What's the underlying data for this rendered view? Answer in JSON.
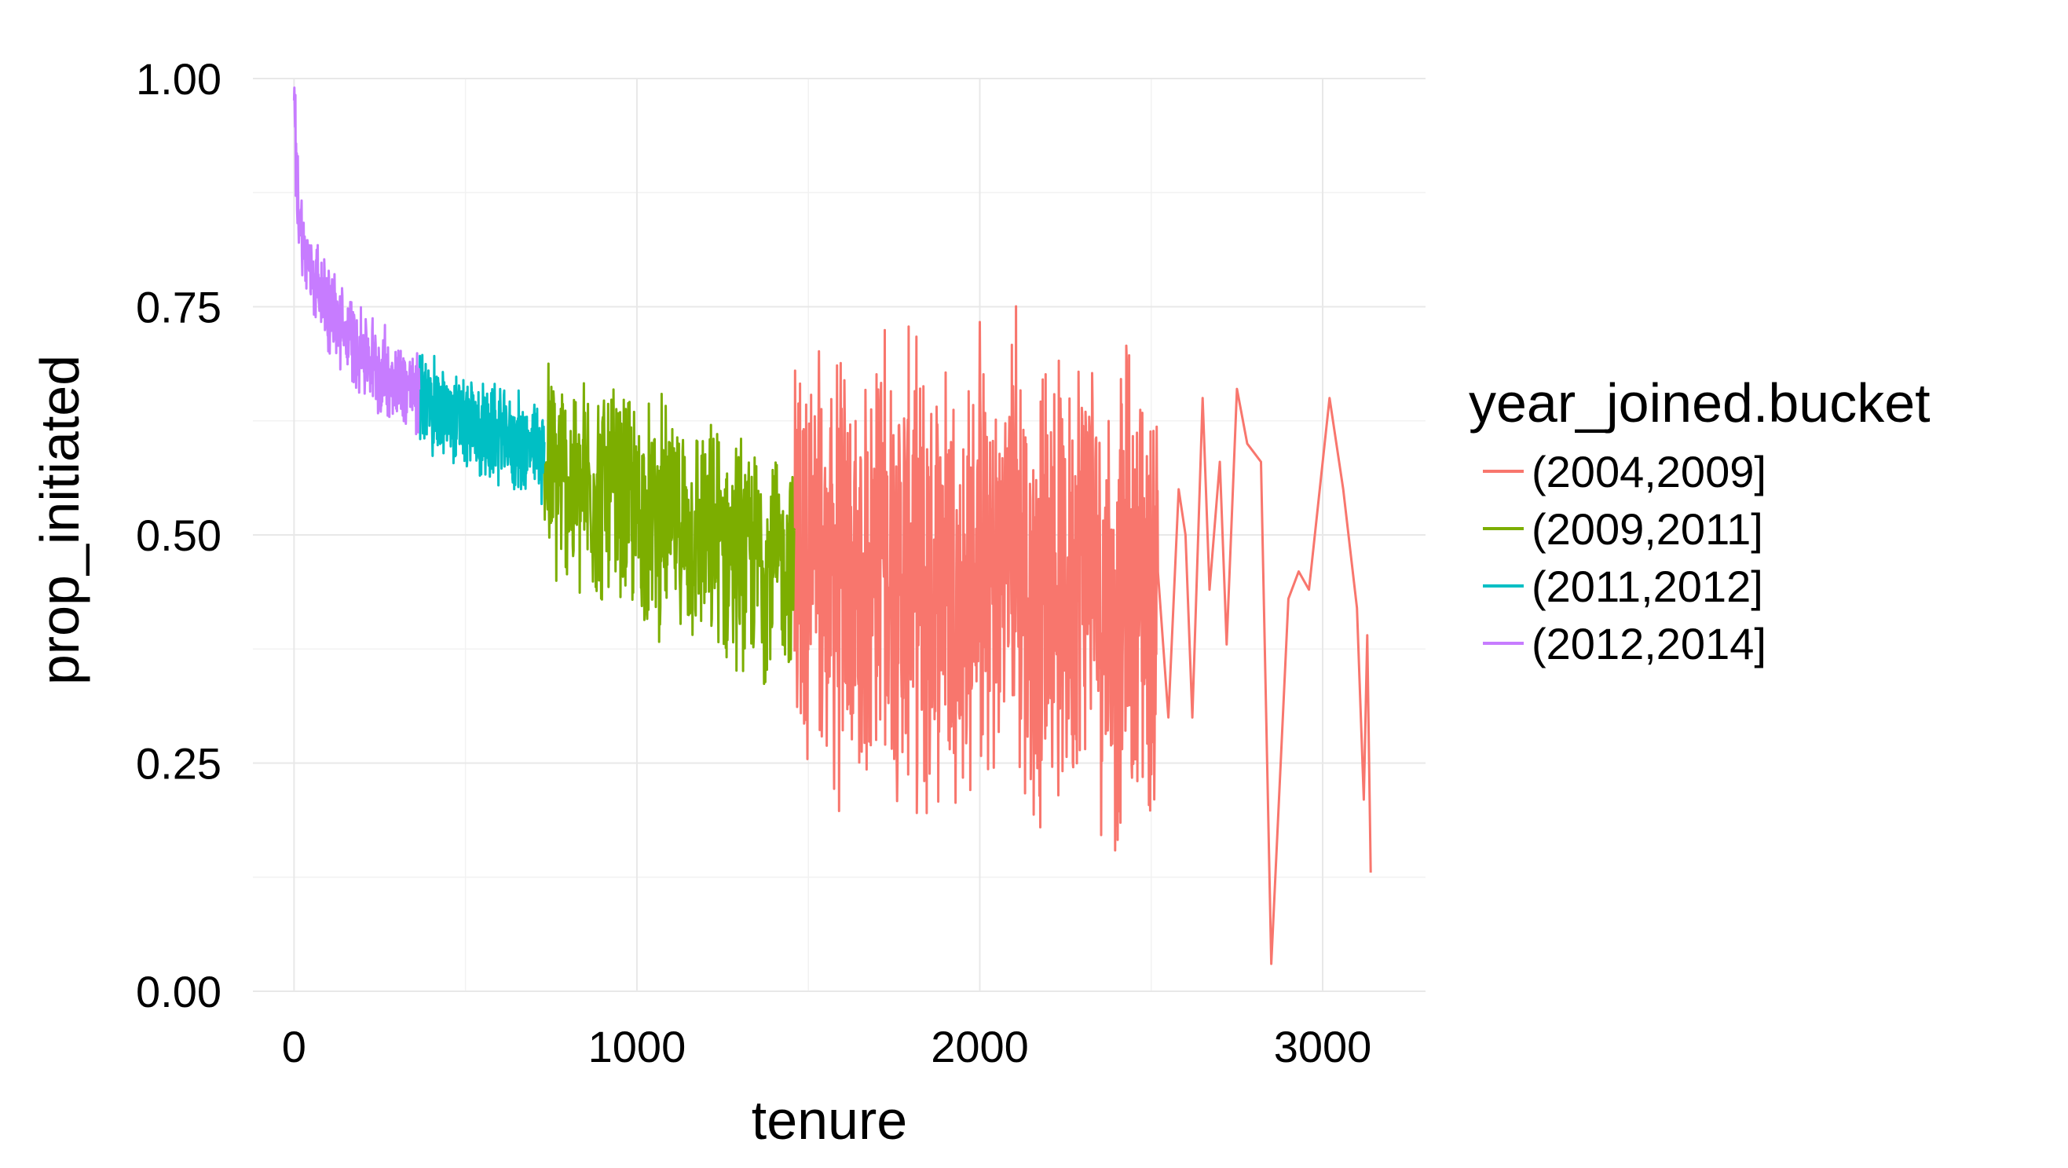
{
  "chart_data": {
    "type": "line",
    "title": "",
    "xlabel": "tenure",
    "ylabel": "prop_initiated",
    "xlim": [
      -120,
      3300
    ],
    "ylim": [
      0,
      1.0
    ],
    "x_ticks": [
      0,
      1000,
      2000,
      3000
    ],
    "x_tick_labels": [
      "0",
      "1000",
      "2000",
      "3000"
    ],
    "y_ticks": [
      0,
      0.25,
      0.5,
      0.75,
      1.0
    ],
    "y_tick_labels": [
      "0.00",
      "0.25",
      "0.50",
      "0.75",
      "1.00"
    ],
    "grid": true,
    "legend": {
      "title": "year_joined.bucket",
      "position": "right"
    },
    "series": [
      {
        "name": "(2004,2009]",
        "color": "#F8766D",
        "x": [
          1460,
          1500,
          1550,
          1600,
          1650,
          1700,
          1750,
          1800,
          1850,
          1900,
          1950,
          2000,
          2050,
          2100,
          2150,
          2200,
          2250,
          2300,
          2350,
          2400,
          2430,
          2450,
          2480,
          2500,
          2520,
          2550,
          2580,
          2600,
          2620,
          2650,
          2670,
          2700,
          2720,
          2750,
          2780,
          2820,
          2850,
          2900,
          2930,
          2960,
          3020,
          3060,
          3100,
          3120,
          3130,
          3140
        ],
        "y": [
          0.46,
          0.48,
          0.44,
          0.46,
          0.42,
          0.5,
          0.45,
          0.47,
          0.43,
          0.49,
          0.41,
          0.48,
          0.44,
          0.52,
          0.4,
          0.47,
          0.43,
          0.5,
          0.45,
          0.39,
          0.48,
          0.42,
          0.46,
          0.4,
          0.48,
          0.3,
          0.55,
          0.5,
          0.3,
          0.65,
          0.44,
          0.58,
          0.38,
          0.66,
          0.6,
          0.58,
          0.03,
          0.43,
          0.46,
          0.44,
          0.65,
          0.55,
          0.42,
          0.21,
          0.39,
          0.13
        ]
      },
      {
        "name": "(2009,2011]",
        "color": "#7CAE00",
        "x": [
          730,
          780,
          830,
          880,
          930,
          980,
          1030,
          1080,
          1130,
          1180,
          1230,
          1280,
          1330,
          1380,
          1430,
          1460
        ],
        "y": [
          0.57,
          0.56,
          0.55,
          0.55,
          0.54,
          0.53,
          0.52,
          0.52,
          0.51,
          0.5,
          0.49,
          0.49,
          0.48,
          0.47,
          0.47,
          0.46
        ]
      },
      {
        "name": "(2011,2012]",
        "color": "#00BFC4",
        "x": [
          365,
          400,
          450,
          500,
          550,
          600,
          650,
          700,
          730
        ],
        "y": [
          0.65,
          0.64,
          0.63,
          0.62,
          0.61,
          0.61,
          0.6,
          0.59,
          0.59
        ]
      },
      {
        "name": "(2012,2014]",
        "color": "#C77CFF",
        "x": [
          0,
          5,
          10,
          20,
          30,
          50,
          75,
          100,
          150,
          200,
          250,
          300,
          340,
          365
        ],
        "y": [
          1.0,
          0.92,
          0.87,
          0.84,
          0.81,
          0.79,
          0.77,
          0.75,
          0.72,
          0.7,
          0.68,
          0.67,
          0.66,
          0.65
        ]
      }
    ],
    "noise": [
      {
        "series": "(2012,2014]",
        "x_start": 0,
        "x_end": 365,
        "amplitude": 0.04
      },
      {
        "series": "(2011,2012]",
        "x_start": 365,
        "x_end": 730,
        "amplitude": 0.045
      },
      {
        "series": "(2009,2011]",
        "x_start": 730,
        "x_end": 1460,
        "amplitude": 0.1
      },
      {
        "series": "(2004,2009]",
        "x_start": 1460,
        "x_end": 2520,
        "amplitude": 0.2
      }
    ]
  }
}
